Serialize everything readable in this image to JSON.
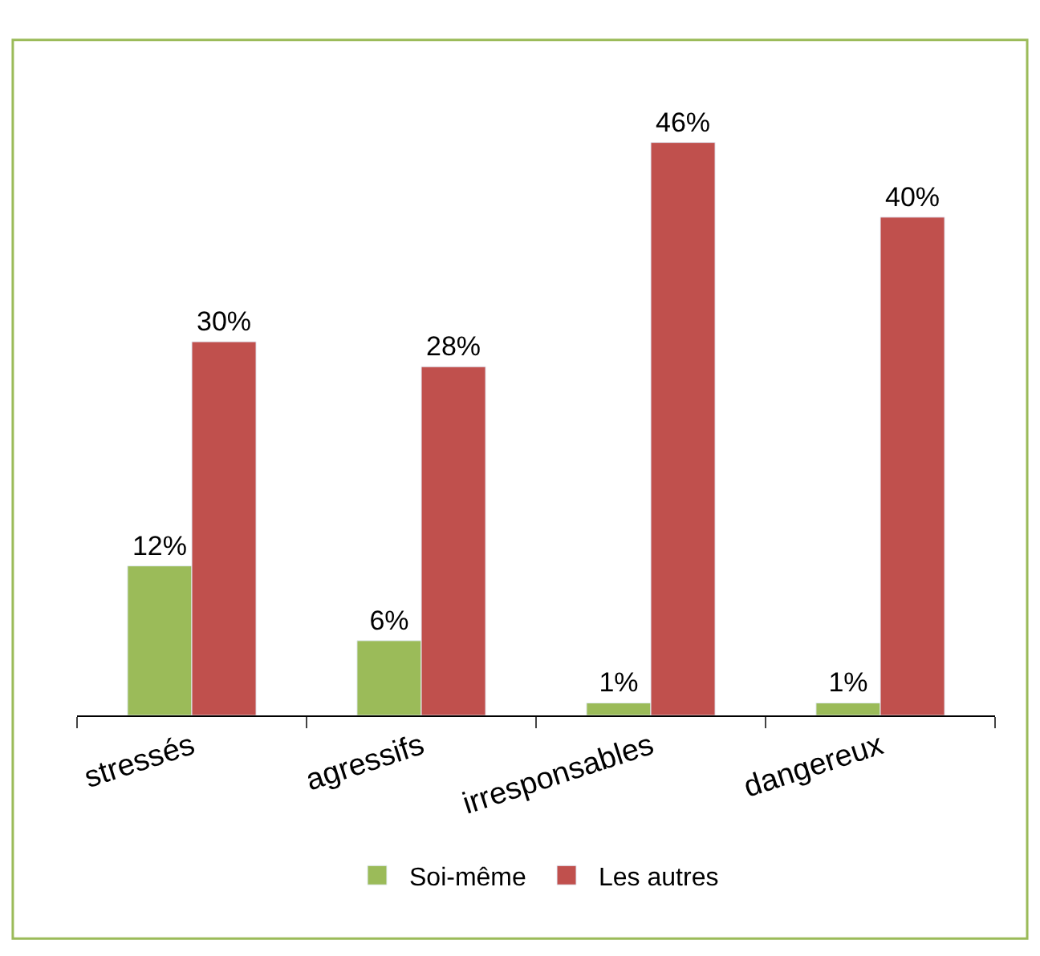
{
  "chart_data": {
    "type": "bar",
    "categories": [
      "stressés",
      "agressifs",
      "irresponsables",
      "dangereux"
    ],
    "series": [
      {
        "name": "Soi-même",
        "color": "#9bbb59",
        "values": [
          12,
          6,
          1,
          1
        ],
        "value_labels": [
          "12%",
          "6%",
          "1%",
          "1%"
        ]
      },
      {
        "name": "Les autres",
        "color": "#c0504d",
        "values": [
          30,
          28,
          46,
          40
        ],
        "value_labels": [
          "30%",
          "28%",
          "46%",
          "40%"
        ]
      }
    ],
    "legend": "bottom"
  }
}
